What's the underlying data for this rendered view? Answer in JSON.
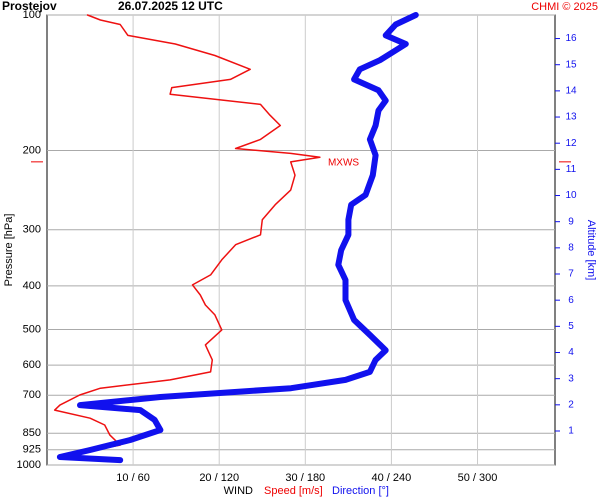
{
  "chart_data": {
    "type": "profile",
    "title": "Prostejov",
    "subtitle": "26.07.2025 12 UTC",
    "credit": "CHMI © 2025",
    "ylabel": "Pressure [hPa]",
    "y2label": "Altitude [km]",
    "xlabel": "WIND",
    "xlabel_speed": "Speed [m/s]",
    "xlabel_direction": "Direction [°]",
    "log_y": true,
    "grid": true,
    "ylim": [
      100,
      1000
    ],
    "yticks": [
      100,
      200,
      300,
      400,
      500,
      600,
      700,
      850,
      925,
      1000
    ],
    "xlim": [
      0,
      59
    ],
    "x2lim": [
      0,
      354
    ],
    "xticks": [
      {
        "value": 10,
        "label": "10 / 60"
      },
      {
        "value": 20,
        "label": "20 / 120"
      },
      {
        "value": 30,
        "label": "30 / 180"
      },
      {
        "value": 40,
        "label": "40 / 240"
      },
      {
        "value": 50,
        "label": "50 / 300"
      }
    ],
    "y2lim": [
      -0.3,
      16.9
    ],
    "y2ticks": [
      1,
      2,
      3,
      4,
      5,
      6,
      7,
      8,
      9,
      10,
      11,
      12,
      13,
      14,
      15,
      16
    ],
    "annotation": {
      "label": "MXWS",
      "pressure": 212
    },
    "series": [
      {
        "name": "Speed [m/s]",
        "color": "#ee1111",
        "axis": "x",
        "pressure": [
          100,
          102.6,
          105,
          111,
          116,
          123,
          132,
          139,
          145,
          150,
          158,
          167,
          176,
          189,
          198,
          203,
          207,
          212,
          227,
          245,
          264,
          285,
          308,
          324,
          350,
          378,
          398,
          419,
          441,
          464,
          501,
          541,
          584,
          621,
          647,
          675,
          699,
          736,
          755,
          787,
          815,
          858,
          903,
          950,
          975
        ],
        "values": [
          4.7,
          6.2,
          8.5,
          9.4,
          14.9,
          19.5,
          23.6,
          21.3,
          14.5,
          14.3,
          24.8,
          25.9,
          27.1,
          24.8,
          21.9,
          28.3,
          31.7,
          28.3,
          28.8,
          28.3,
          26.5,
          25,
          24.8,
          21.9,
          20.3,
          19,
          16.9,
          17.8,
          18.4,
          19.5,
          20.3,
          18.4,
          19.2,
          19,
          14.3,
          6.2,
          3.8,
          1.5,
          0.9,
          5,
          6.7,
          7.3,
          8.5,
          2.1,
          5
        ]
      },
      {
        "name": "Direction [°]",
        "color": "#1111ee",
        "axis": "x2",
        "pressure": [
          100,
          105,
          111,
          116,
          126,
          132,
          139,
          147,
          155,
          163,
          176,
          189,
          205,
          227,
          251,
          264,
          285,
          308,
          333,
          359,
          388,
          430,
          476,
          514,
          556,
          584,
          621,
          647,
          675,
          706,
          736,
          755,
          794,
          836,
          880,
          926,
          960,
          975
        ],
        "values": [
          257,
          243,
          236,
          250,
          232,
          218,
          214,
          231,
          236,
          231,
          229,
          225,
          229,
          227,
          222,
          212,
          210,
          210,
          205,
          203,
          208,
          208,
          214,
          225,
          236,
          229,
          225,
          208,
          170,
          79,
          23,
          65,
          75,
          79,
          58,
          30,
          9,
          51
        ]
      }
    ]
  }
}
